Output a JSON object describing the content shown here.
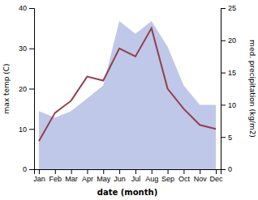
{
  "chart_data": {
    "type": "line",
    "categories": [
      "Jan",
      "Feb",
      "Mar",
      "Apr",
      "May",
      "Jun",
      "Jul",
      "Aug",
      "Sep",
      "Oct",
      "Nov",
      "Dec"
    ],
    "series": [
      {
        "type": "area",
        "color": "#bfc8e8",
        "axis": "y2",
        "values": [
          9,
          8,
          9,
          11,
          13,
          23,
          21,
          23,
          19,
          13,
          10,
          10
        ]
      },
      {
        "type": "line",
        "color": "#943f4b",
        "values": [
          7,
          14,
          17,
          23,
          22,
          30,
          28,
          35,
          20,
          15,
          11,
          10
        ]
      }
    ],
    "xlabel": "date (month)",
    "ylabel": "max temp (C)",
    "y2label": "med. precipitation (kg/m2)",
    "ylim": [
      0,
      40
    ],
    "yticks": [
      0,
      10,
      20,
      30,
      40
    ],
    "y2lim": [
      0,
      25
    ],
    "y2ticks": [
      0,
      5,
      10,
      15,
      20,
      25
    ],
    "grid": false
  }
}
